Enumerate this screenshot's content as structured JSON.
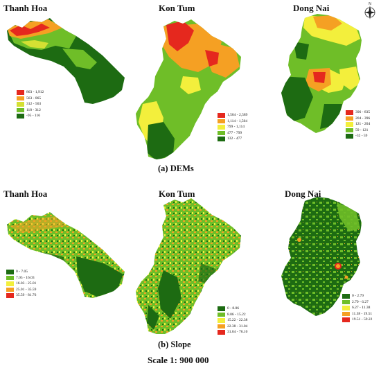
{
  "colors": {
    "c1": "#1d6b12",
    "c2": "#6fbe28",
    "c3": "#f3ef3c",
    "c4": "#f5a023",
    "c5": "#e5281e"
  },
  "maps": {
    "dem": {
      "caption": "(a) DEMs",
      "thanh_hoa": {
        "title": "Thanh Hoa",
        "legend": [
          "863 - 1,912",
          "563 - 865",
          "312 - 563",
          "118 - 312",
          "-95 - 116"
        ],
        "legend_colors": [
          "#e5281e",
          "#f5a023",
          "#d4e033",
          "#6fbe28",
          "#1d6b12"
        ]
      },
      "kon_tum": {
        "title": "Kon Tum",
        "legend": [
          "1,504 - 2,589",
          "1,114 - 1,504",
          "799 - 1,114",
          "477 - 799",
          "132 - 477"
        ],
        "legend_colors": [
          "#e5281e",
          "#f5a023",
          "#f3ef3c",
          "#6fbe28",
          "#1d6b12"
        ]
      },
      "dong_nai": {
        "title": "Dong Nai",
        "legend": [
          "396 - 835",
          "204 - 396",
          "121 - 204",
          "59 - 121",
          "-32 - 59"
        ],
        "legend_colors": [
          "#e5281e",
          "#f5a023",
          "#f3ef3c",
          "#6fbe28",
          "#1d6b12"
        ]
      }
    },
    "slope": {
      "caption": "(b) Slope",
      "thanh_hoa": {
        "title": "Thanh Hoa",
        "legend": [
          "0 - 7.05",
          "7.05 - 16.03",
          "16.03 - 25.01",
          "25.01 - 35.59",
          "35.59 - 81.76"
        ],
        "legend_colors": [
          "#1d6b12",
          "#6fbe28",
          "#f3ef3c",
          "#f5a023",
          "#e5281e"
        ]
      },
      "kon_tum": {
        "title": "Kon Tum",
        "legend": [
          "0 - 8.06",
          "8.06 - 15.22",
          "15.22 - 22.38",
          "22.38 - 31.04",
          "31.04 - 76.10"
        ],
        "legend_colors": [
          "#1d6b12",
          "#6fbe28",
          "#f3ef3c",
          "#f5a023",
          "#e5281e"
        ]
      },
      "dong_nai": {
        "title": "Dong Nai",
        "legend": [
          "0 - 2.79",
          "2.79 - 6.27",
          "6.27 - 11.38",
          "11.38 - 19.51",
          "19.51 - 59.22"
        ],
        "legend_colors": [
          "#1d6b12",
          "#6fbe28",
          "#f3ef3c",
          "#f5a023",
          "#e5281e"
        ]
      }
    }
  },
  "compass": {
    "label": "N",
    "icon": "north-arrow-icon"
  },
  "scale": "Scale 1: 900 000"
}
